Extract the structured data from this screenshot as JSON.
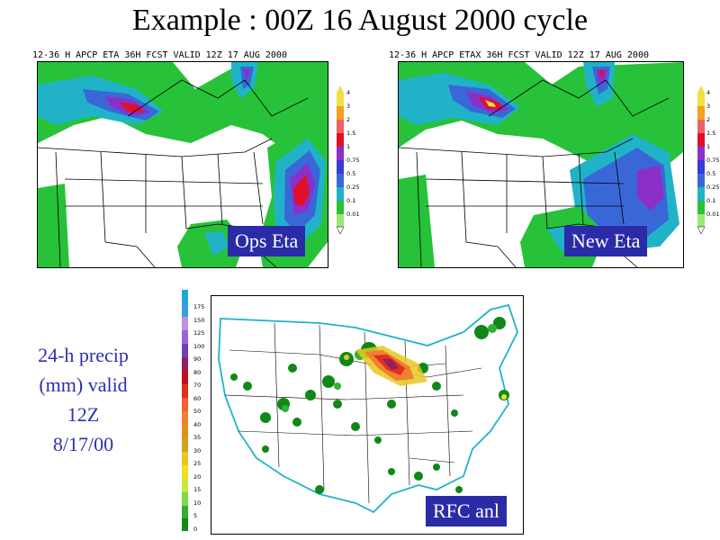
{
  "title": "Example : 00Z 16 August 2000 cycle",
  "left_panel": {
    "header": "12-36 H APCP ETA 36H FCST VALID 12Z 17 AUG 2000",
    "label": "Ops Eta",
    "colorbar_ticks": [
      "4",
      "3",
      "2",
      "1.5",
      "1",
      "0.75",
      "0.5",
      "0.25",
      "0.1",
      "0.01"
    ]
  },
  "right_panel": {
    "header": "12-36 H APCP ETAX 36H FCST VALID 12Z 17 AUG 2000",
    "label": "New Eta",
    "colorbar_ticks": [
      "4",
      "3",
      "2",
      "1.5",
      "1",
      "0.75",
      "0.5",
      "0.25",
      "0.1",
      "0.01"
    ]
  },
  "bottom_panel": {
    "label": "RFC anl",
    "colorbar_ticks": [
      "175",
      "150",
      "125",
      "100",
      "90",
      "80",
      "70",
      "60",
      "50",
      "40",
      "35",
      "30",
      "25",
      "20",
      "15",
      "10",
      "5",
      "0"
    ]
  },
  "side_note": [
    "24-h precip",
    "(mm) valid",
    "12Z",
    "8/17/00"
  ],
  "colors": {
    "label_bg": "#2b2ba8",
    "side_note": "#2f2fb0",
    "precip_light": "#27c23a",
    "precip_mid": "#20b3c8",
    "precip_blue": "#3a67d8",
    "precip_purple": "#8b2fc9",
    "precip_red": "#e0102a"
  }
}
